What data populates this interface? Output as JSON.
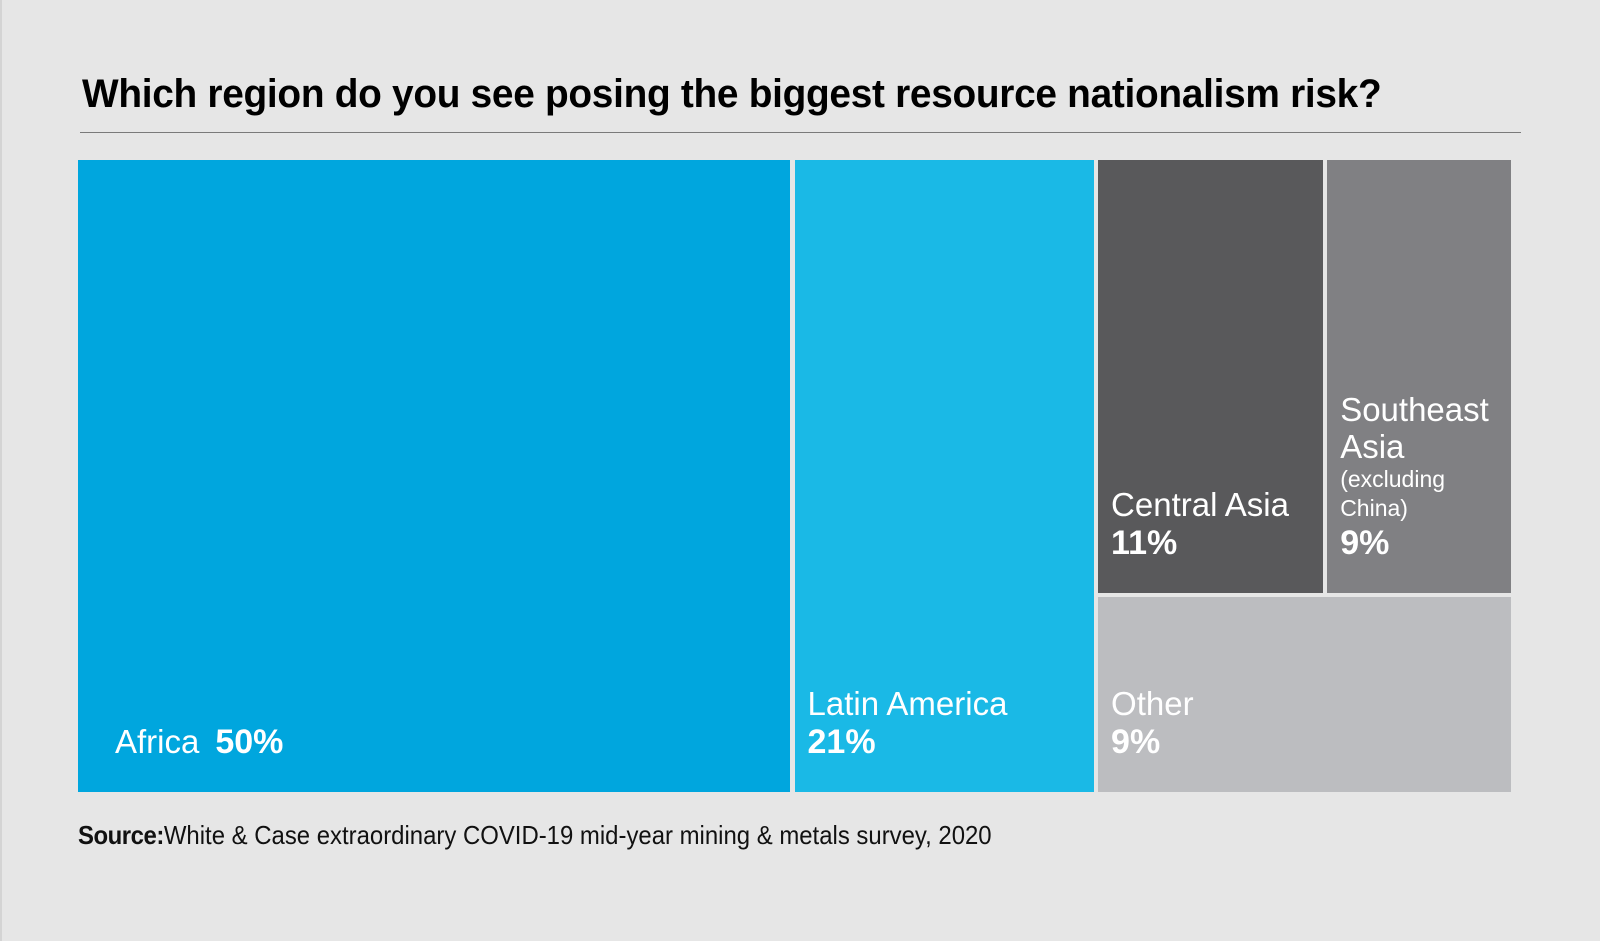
{
  "chart_data": {
    "type": "treemap",
    "title": "Which region do you see posing the biggest resource nationalism risk?",
    "unit": "%",
    "items": [
      {
        "name": "Africa",
        "label": "Africa",
        "sublabel": "",
        "value": 50,
        "display": "50%",
        "color": "#00a6de"
      },
      {
        "name": "Latin America",
        "label": "Latin America",
        "sublabel": "",
        "value": 21,
        "display": "21%",
        "color": "#1ab9e6"
      },
      {
        "name": "Central Asia",
        "label": "Central Asia",
        "sublabel": "",
        "value": 11,
        "display": "11%",
        "color": "#59595b"
      },
      {
        "name": "Southeast Asia (excluding China)",
        "label": "Southeast Asia",
        "sublabel": "(excluding China)",
        "value": 9,
        "display": "9%",
        "color": "#808083"
      },
      {
        "name": "Other",
        "label": "Other",
        "sublabel": "",
        "value": 9,
        "display": "9%",
        "color": "#bcbdc0"
      }
    ]
  },
  "source": {
    "prefix": "Source:",
    "text": "White & Case extraordinary COVID-19 mid-year mining & metals survey, 2020"
  },
  "colors": {
    "background": "#e6e6e6",
    "title": "#000000",
    "rule": "#7a7a7a"
  }
}
